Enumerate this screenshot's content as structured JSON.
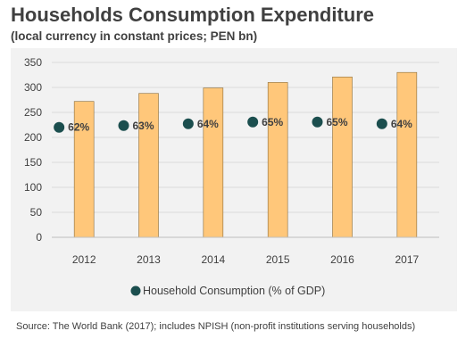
{
  "title": "Households Consumption Expenditure",
  "subtitle": "(local currency in constant prices; PEN bn)",
  "source": "Source: The World Bank (2017); includes NPISH (non-profit institutions serving households)",
  "colors": {
    "bar": "#ffc77a",
    "bar_stroke": "#8a6d3b",
    "marker": "#1b4e4e",
    "panel": "#f2f2f2",
    "grid": "#d9d9d9",
    "text": "#404040"
  },
  "chart_data": {
    "type": "bar",
    "categories": [
      "2012",
      "2013",
      "2014",
      "2015",
      "2016",
      "2017"
    ],
    "series": [
      {
        "values": [
          272,
          288,
          299,
          310,
          321,
          330
        ]
      },
      {
        "name": "Household Consumption (% of GDP)",
        "type": "scatter",
        "values": [
          62,
          63,
          64,
          65,
          65,
          64
        ],
        "labels": [
          "62%",
          "63%",
          "64%",
          "65%",
          "65%",
          "64%"
        ]
      }
    ],
    "ylim": [
      0,
      350
    ],
    "yticks": [
      0,
      50,
      100,
      150,
      200,
      250,
      300,
      350
    ],
    "grid": true,
    "legend": "bottom"
  }
}
